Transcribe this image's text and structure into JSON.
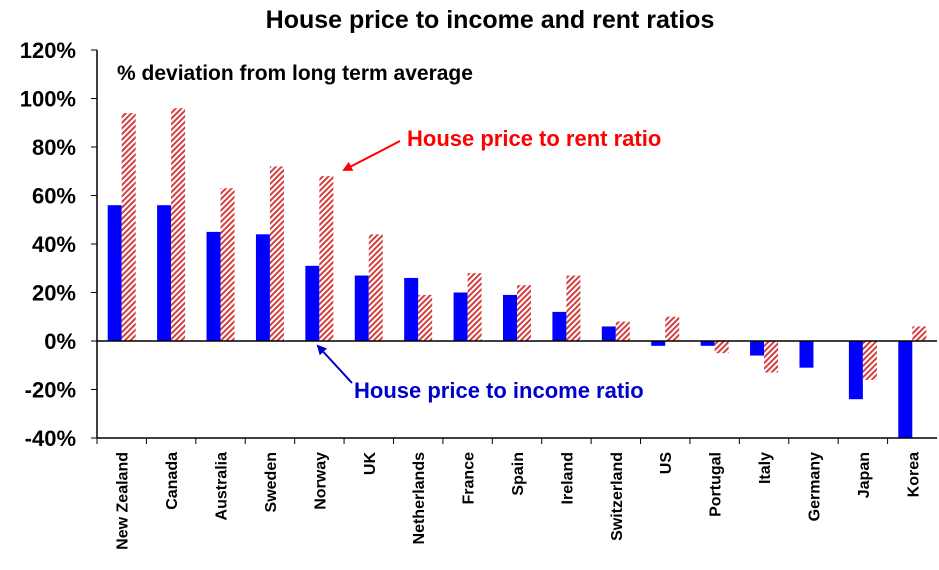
{
  "chart_data": {
    "type": "bar",
    "title": "House price to income and rent ratios",
    "subtitle": "% deviation from long term average",
    "categories": [
      "New Zealand",
      "Canada",
      "Australia",
      "Sweden",
      "Norway",
      "UK",
      "Netherlands",
      "France",
      "Spain",
      "Ireland",
      "Switzerland",
      "US",
      "Portugal",
      "Italy",
      "Germany",
      "Japan",
      "Korea"
    ],
    "series": [
      {
        "name": "House price to income ratio",
        "color": "#0000ff",
        "pattern": "solid",
        "values": [
          56,
          56,
          45,
          44,
          31,
          27,
          26,
          20,
          19,
          12,
          6,
          -2,
          -2,
          -6,
          -11,
          -24,
          -40
        ]
      },
      {
        "name": "House price to rent ratio",
        "color": "#d44040",
        "pattern": "diagonal-hatch",
        "values": [
          94,
          96,
          63,
          72,
          68,
          44,
          19,
          28,
          23,
          27,
          8,
          10,
          -5,
          -13,
          0,
          -16,
          6
        ]
      }
    ],
    "yticks": [
      "120%",
      "100%",
      "80%",
      "60%",
      "40%",
      "20%",
      "0%",
      "-20%",
      "-40%"
    ],
    "ylim": [
      -40,
      120
    ],
    "annotations": [
      {
        "text": "House price to rent ratio",
        "color": "#ff0000",
        "target_series": 1,
        "target_category": 4
      },
      {
        "text": "House price to income ratio",
        "color": "#0000cc",
        "target_series": 0,
        "target_category": 4
      }
    ],
    "grid": false,
    "legend": "none"
  }
}
